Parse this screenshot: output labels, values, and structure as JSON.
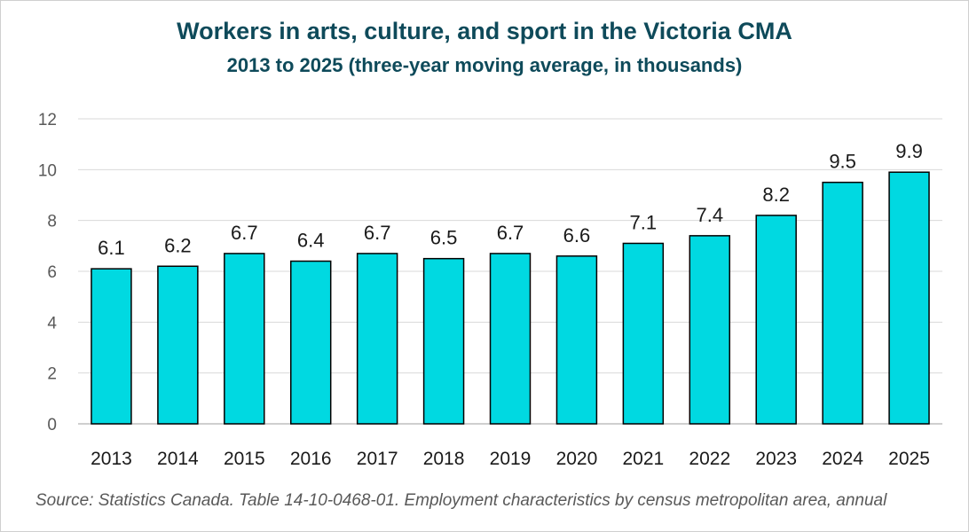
{
  "chart_data": {
    "type": "bar",
    "title": "Workers in arts, culture, and sport in the Victoria CMA",
    "subtitle": "2013 to 2025 (three-year moving average,  in thousands)",
    "categories": [
      "2013",
      "2014",
      "2015",
      "2016",
      "2017",
      "2018",
      "2019",
      "2020",
      "2021",
      "2022",
      "2023",
      "2024",
      "2025"
    ],
    "values": [
      6.1,
      6.2,
      6.7,
      6.4,
      6.7,
      6.5,
      6.7,
      6.6,
      7.1,
      7.4,
      8.2,
      9.5,
      9.9
    ],
    "data_labels": [
      "6.1",
      "6.2",
      "6.7",
      "6.4",
      "6.7",
      "6.5",
      "6.7",
      "6.6",
      "7.1",
      "7.4",
      "8.2",
      "9.5",
      "9.9"
    ],
    "ylim": [
      0,
      12
    ],
    "yticks": [
      0,
      2,
      4,
      6,
      8,
      10,
      12
    ],
    "grid": true,
    "bar_color": "#00d9e1",
    "xlabel": "",
    "ylabel": ""
  },
  "source": "Source: Statistics Canada. Table 14-10-0468-01. Employment characteristics by census metropolitan area, annual"
}
